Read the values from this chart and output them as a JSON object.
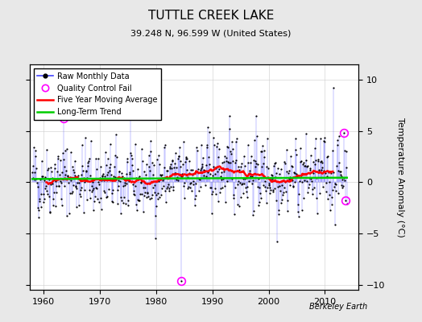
{
  "title": "TUTTLE CREEK LAKE",
  "subtitle": "39.248 N, 96.599 W (United States)",
  "ylabel": "Temperature Anomaly (°C)",
  "credit": "Berkeley Earth",
  "ylim": [
    -10.5,
    11.5
  ],
  "xlim": [
    1957.5,
    2016.0
  ],
  "yticks": [
    -10,
    -5,
    0,
    5,
    10
  ],
  "xticks": [
    1960,
    1970,
    1980,
    1990,
    2000,
    2010
  ],
  "background_color": "#e8e8e8",
  "plot_bg_color": "#ffffff",
  "line_color": "#4444ff",
  "marker_color": "#000000",
  "qc_color": "#ff00ff",
  "ma_color": "#ff0000",
  "trend_color": "#00cc00",
  "seed": 42,
  "n_points": 672,
  "year_start": 1958.0,
  "year_end": 2013.9,
  "title_fontsize": 11,
  "subtitle_fontsize": 8,
  "ylabel_fontsize": 8,
  "tick_fontsize": 8,
  "legend_fontsize": 7,
  "credit_fontsize": 7
}
